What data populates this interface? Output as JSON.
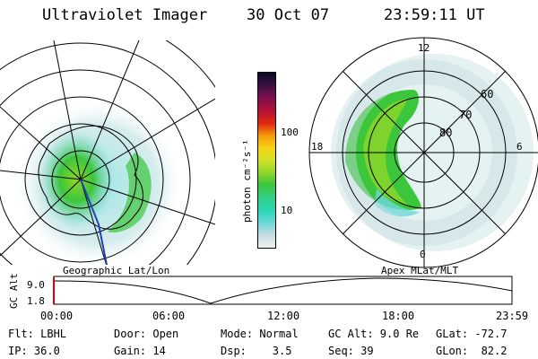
{
  "header": {
    "instrument": "Ultraviolet Imager",
    "date": "30 Oct 07",
    "time": "23:59:11 UT"
  },
  "left_map": {
    "caption": "Geographic Lat/Lon"
  },
  "right_map": {
    "caption": "Apex MLat/MLT",
    "mlt_labels": {
      "top": "12",
      "bottom": "0",
      "left": "18",
      "right": "6"
    },
    "lat_labels": [
      "60",
      "70",
      "80"
    ]
  },
  "colorbar": {
    "unit_label": "photon cm⁻²s⁻¹",
    "ticks": [
      {
        "label": "100",
        "value": 100
      },
      {
        "label": "10",
        "value": 10
      }
    ],
    "colors": [
      "#f2f2f2",
      "#c7dce0",
      "#6fd8d8",
      "#2bd7b8",
      "#32d080",
      "#3cc63c",
      "#8fd628",
      "#d2e22a",
      "#f6d414",
      "#f49a0a",
      "#e02a10",
      "#b0103a",
      "#7a1050",
      "#3a1040",
      "#0a0a2a"
    ]
  },
  "gc_alt_plot": {
    "axis_label": "GC Alt",
    "y_max": "9.0",
    "y_min": "1.8",
    "x_ticks": [
      "00:00",
      "06:00",
      "12:00",
      "18:00",
      "23:59"
    ],
    "marker_color": "#e00000"
  },
  "footer": {
    "row1": [
      "Flt: LBHL",
      "Door: Open",
      "Mode: Normal",
      "GC Alt: 9.0 Re",
      "GLat: -72.7"
    ],
    "row2": [
      "IP: 36.0",
      "Gain: 14",
      "Dsp:    3.5",
      "Seq: 39",
      "GLon:  82.2"
    ]
  }
}
